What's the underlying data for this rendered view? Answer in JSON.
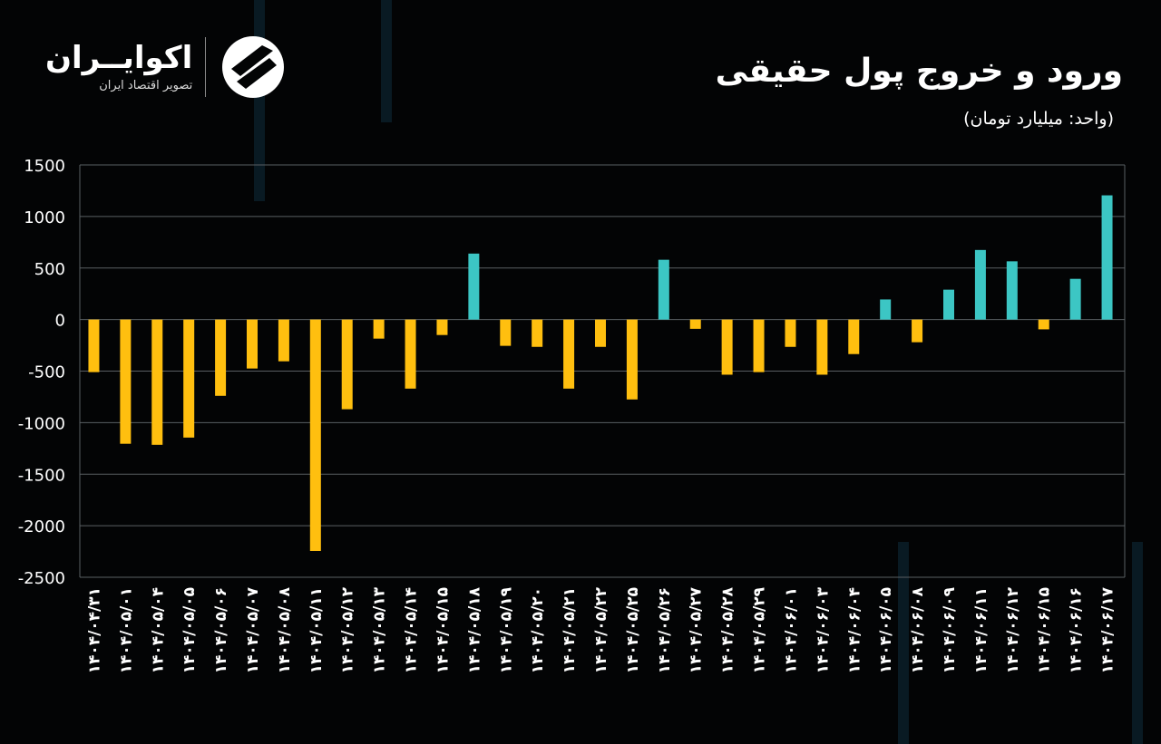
{
  "logo": {
    "name": "اکوایــران",
    "tagline": "تصویر اقتصاد ایران"
  },
  "chart_data": {
    "type": "bar",
    "title": "ورود و خروج پول حقیقی",
    "subtitle": "(واحد: میلیارد تومان)",
    "xlabel": "",
    "ylabel": "",
    "ylim": [
      -2500,
      1500
    ],
    "yticks": [
      1500,
      1000,
      500,
      0,
      -500,
      -1000,
      -1500,
      -2000,
      -2500
    ],
    "grid": true,
    "colors": {
      "positive": "#3cc6c4",
      "negative": "#ffbf0f",
      "grid": "#5a5f63"
    },
    "categories": [
      "۱۴۰۴/۰۴/۳۱",
      "۱۴۰۴/۰۵/۰۱",
      "۱۴۰۴/۰۵/۰۴",
      "۱۴۰۴/۰۵/۰۵",
      "۱۴۰۴/۰۵/۰۶",
      "۱۴۰۴/۰۵/۰۷",
      "۱۴۰۴/۰۵/۰۸",
      "۱۴۰۴/۰۵/۱۱",
      "۱۴۰۴/۰۵/۱۲",
      "۱۴۰۴/۰۵/۱۳",
      "۱۴۰۴/۰۵/۱۴",
      "۱۴۰۴/۰۵/۱۵",
      "۱۴۰۴/۰۵/۱۸",
      "۱۴۰۴/۰۵/۱۹",
      "۱۴۰۴/۰۵/۲۰",
      "۱۴۰۴/۰۵/۲۱",
      "۱۴۰۴/۰۵/۲۲",
      "۱۴۰۴/۰۵/۲۵",
      "۱۴۰۴/۰۵/۲۶",
      "۱۴۰۴/۰۵/۲۷",
      "۱۴۰۴/۰۵/۲۸",
      "۱۴۰۴/۰۵/۲۹",
      "۱۴۰۴/۰۶/۰۱",
      "۱۴۰۴/۰۶/۰۳",
      "۱۴۰۴/۰۶/۰۴",
      "۱۴۰۴/۰۶/۰۵",
      "۱۴۰۴/۰۶/۰۸",
      "۱۴۰۴/۰۶/۰۹",
      "۱۴۰۴/۰۶/۱۱",
      "۱۴۰۴/۰۶/۱۲",
      "۱۴۰۴/۰۶/۱۵",
      "۱۴۰۴/۰۶/۱۶",
      "۱۴۰۴/۰۶/۱۷"
    ],
    "values": [
      -510,
      -1205,
      -1215,
      -1145,
      -740,
      -475,
      -405,
      -2245,
      -870,
      -185,
      -670,
      -150,
      640,
      -255,
      -265,
      -670,
      -265,
      -775,
      580,
      -90,
      -535,
      -510,
      -265,
      -535,
      -335,
      195,
      -220,
      290,
      675,
      565,
      -95,
      395,
      1205
    ]
  }
}
